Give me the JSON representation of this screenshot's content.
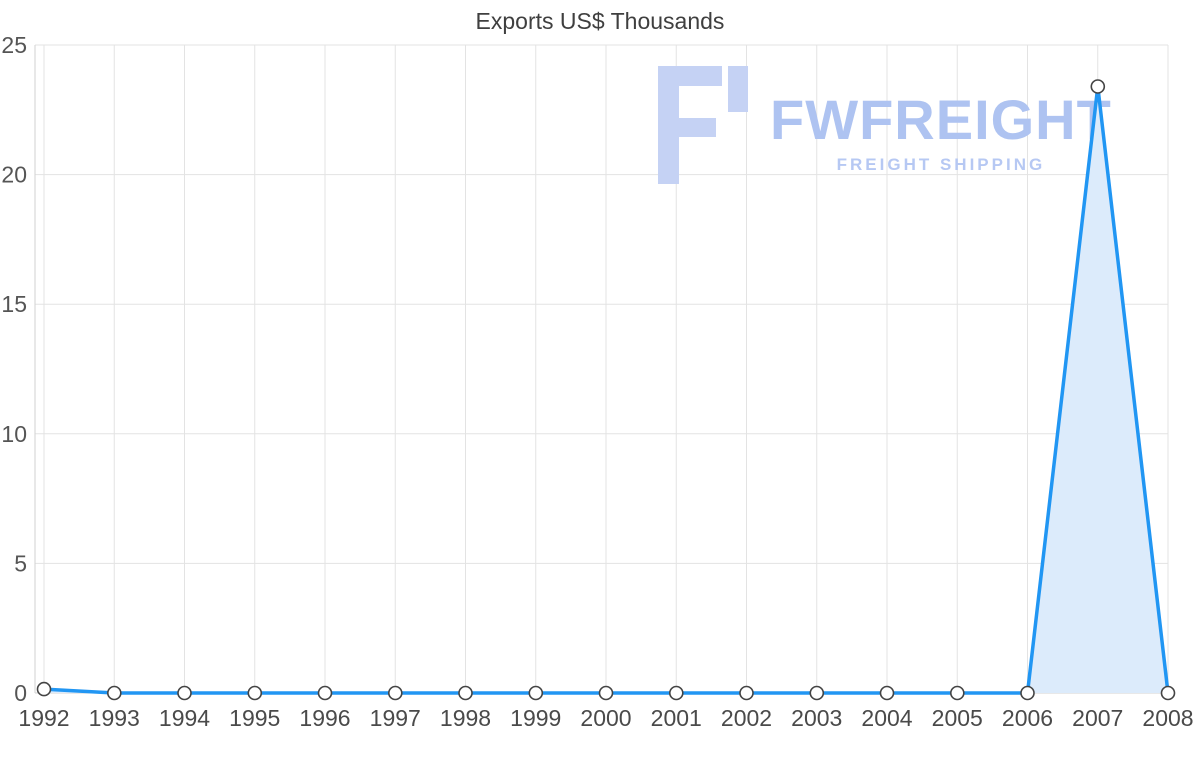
{
  "title": "Exports US$ Thousands",
  "watermark": {
    "name": "FWFREIGHT",
    "subtitle": "FREIGHT SHIPPING",
    "logo_color": "#c5d2f4",
    "text_color": "#aec3f1"
  },
  "chart_data": {
    "type": "area",
    "title": "Exports US$ Thousands",
    "categories": [
      "1992",
      "1993",
      "1994",
      "1995",
      "1996",
      "1997",
      "1998",
      "1999",
      "2000",
      "2001",
      "2002",
      "2003",
      "2004",
      "2005",
      "2006",
      "2007",
      "2008"
    ],
    "values": [
      0.15,
      0,
      0,
      0,
      0,
      0,
      0,
      0,
      0,
      0,
      0,
      0,
      0,
      0,
      0,
      23.4,
      0
    ],
    "xlabel": "",
    "ylabel": "",
    "ylim": [
      0,
      25
    ],
    "yticks": [
      0,
      5,
      10,
      15,
      20,
      25
    ],
    "grid": true,
    "legend": "none",
    "line_color": "#2196f3",
    "line_width": 3.5,
    "fill_color": "#dcebfb",
    "marker_fill": "#ffffff",
    "marker_stroke": "#444444"
  }
}
